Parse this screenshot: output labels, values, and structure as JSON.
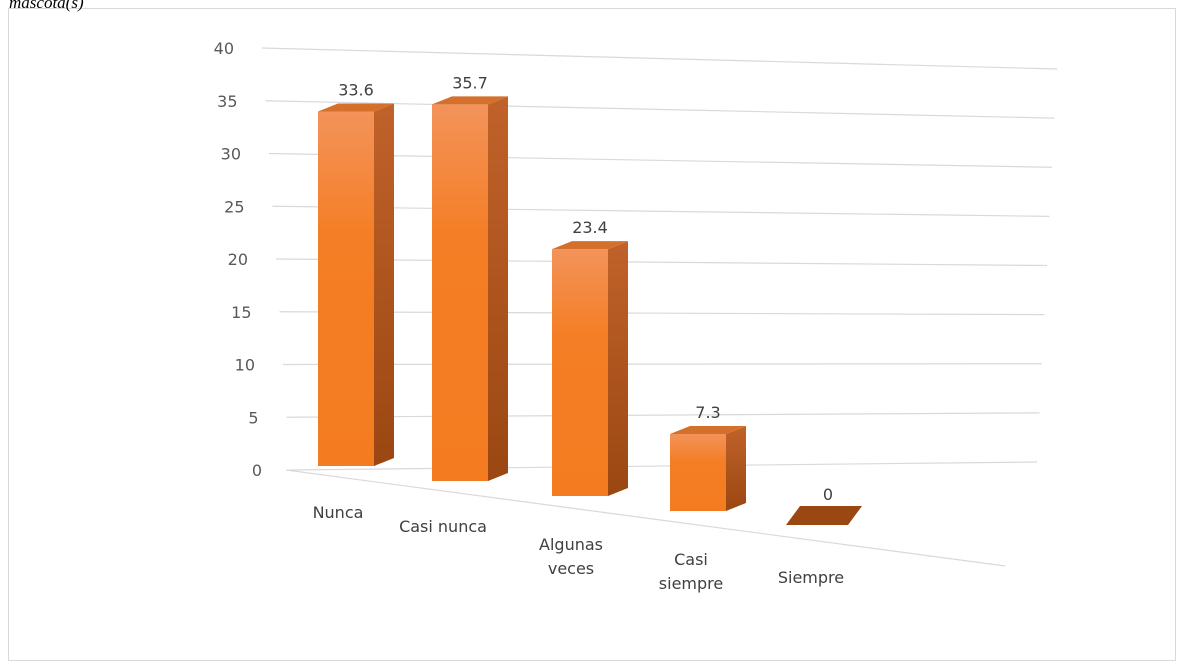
{
  "caption": "mascota(s)",
  "chart_data": {
    "type": "bar",
    "categories": [
      "Nunca",
      "Casi nunca",
      "Algunas veces",
      "Casi siempre",
      "Siempre"
    ],
    "category_lines": [
      [
        "Nunca"
      ],
      [
        "Casi nunca"
      ],
      [
        "Algunas",
        "veces"
      ],
      [
        "Casi",
        "siempre"
      ],
      [
        "Siempre"
      ]
    ],
    "values": [
      33.6,
      35.7,
      23.4,
      7.3,
      0
    ],
    "value_labels": [
      "33.6",
      "35.7",
      "23.4",
      "7.3",
      "0"
    ],
    "ylim": [
      0,
      40
    ],
    "yticks": [
      0,
      5,
      10,
      15,
      20,
      25,
      30,
      35,
      40
    ],
    "grid": true,
    "style": "3d-column",
    "colors": {
      "front": "#f47e25",
      "front_top": "#f3935a",
      "side": "#b5551b",
      "top": "#d46f2c",
      "grid": "#d9d9d9",
      "axis_text": "#595959"
    }
  }
}
